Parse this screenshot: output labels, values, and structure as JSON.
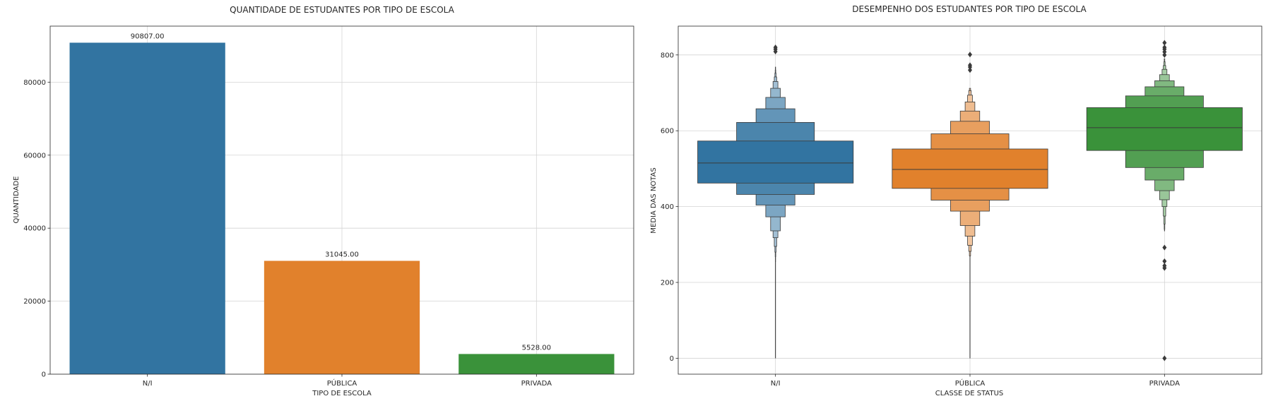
{
  "chart_data": [
    {
      "type": "bar",
      "title": "QUANTIDADE DE ESTUDANTES POR TIPO DE ESCOLA",
      "xlabel": "TIPO DE ESCOLA",
      "ylabel": "QUANTIDADE",
      "categories": [
        "N/I",
        "PÚBLICA",
        "PRIVADA"
      ],
      "values": [
        90807,
        31045,
        5528
      ],
      "data_labels": [
        "90807.00",
        "31045.00",
        "5528.00"
      ],
      "colors": [
        "#3274a1",
        "#e1812c",
        "#3a923a"
      ],
      "ylim": [
        0,
        95347
      ],
      "yticks": [
        0,
        20000,
        40000,
        60000,
        80000
      ],
      "ytick_labels": [
        "0",
        "20000",
        "40000",
        "60000",
        "80000"
      ],
      "grid": true
    },
    {
      "type": "boxen",
      "title": "DESEMPENHO DOS ESTUDANTES POR TIPO DE ESCOLA",
      "xlabel": "CLASSE DE STATUS",
      "ylabel": "MEDIA DAS NOTAS",
      "categories": [
        "N/I",
        "PÚBLICA",
        "PRIVADA"
      ],
      "colors": [
        "#3274a1",
        "#e1812c",
        "#3a923a"
      ],
      "ylim": [
        -42,
        876
      ],
      "yticks": [
        0,
        200,
        400,
        600,
        800
      ],
      "ytick_labels": [
        "0",
        "200",
        "400",
        "600",
        "800"
      ],
      "grid": true,
      "series": [
        {
          "category": "N/I",
          "median": 515,
          "levels": [
            [
              462,
              573
            ],
            [
              432,
              622
            ],
            [
              404,
              658
            ],
            [
              373,
              688
            ],
            [
              336,
              712
            ],
            [
              318,
              730
            ],
            [
              295,
              742
            ],
            [
              280,
              752
            ],
            [
              268,
              760
            ],
            [
              255,
              768
            ]
          ],
          "whisker": [
            0,
            255
          ],
          "outliers": [
            809,
            815,
            820
          ]
        },
        {
          "category": "PÚBLICA",
          "median": 498,
          "levels": [
            [
              448,
              552
            ],
            [
              417,
              592
            ],
            [
              388,
              625
            ],
            [
              350,
              652
            ],
            [
              322,
              676
            ],
            [
              298,
              694
            ],
            [
              282,
              706
            ],
            [
              270,
              712
            ]
          ],
          "whisker": [
            0,
            270
          ],
          "outliers": [
            760,
            768,
            773,
            801
          ]
        },
        {
          "category": "PRIVADA",
          "median": 608,
          "levels": [
            [
              548,
              661
            ],
            [
              503,
              692
            ],
            [
              470,
              716
            ],
            [
              442,
              732
            ],
            [
              418,
              748
            ],
            [
              400,
              762
            ],
            [
              375,
              772
            ],
            [
              354,
              782
            ],
            [
              340,
              790
            ]
          ],
          "whisker": [
            335,
            340
          ],
          "outliers": [
            0,
            238,
            244,
            256,
            292,
            800,
            808,
            815,
            820,
            832
          ]
        }
      ]
    }
  ]
}
